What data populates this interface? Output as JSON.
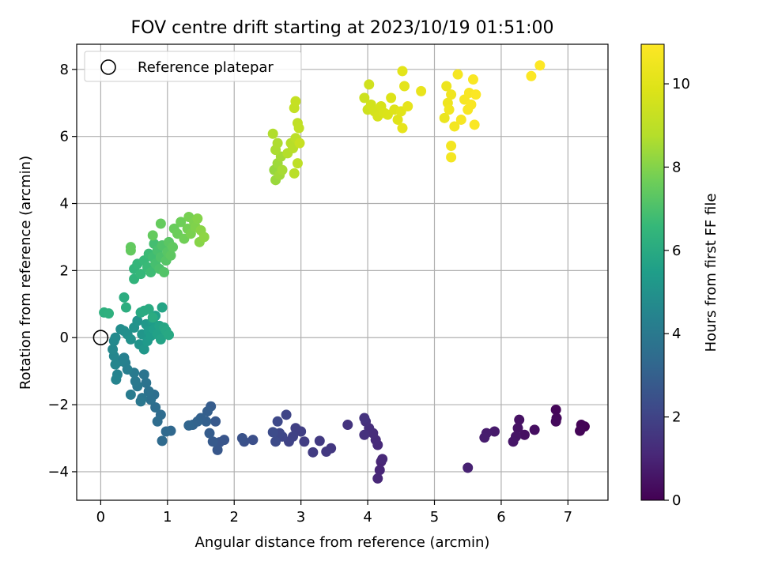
{
  "chart_data": {
    "type": "scatter",
    "title": "FOV centre drift starting at 2023/10/19 01:51:00",
    "xlabel": "Angular distance from reference (arcmin)",
    "ylabel": "Rotation from reference (arcmin)",
    "xlim": [
      -0.36,
      7.6
    ],
    "ylim": [
      -4.85,
      8.75
    ],
    "xticks": [
      0,
      1,
      2,
      3,
      4,
      5,
      6,
      7
    ],
    "yticks": [
      -4,
      -2,
      0,
      2,
      4,
      6,
      8
    ],
    "grid": true,
    "legend": {
      "position": "top-left",
      "entries": [
        "Reference platepar"
      ]
    },
    "reference_point": {
      "x": 0,
      "y": 0
    },
    "colorbar": {
      "label": "Hours from first FF file",
      "min": 0,
      "max": 10.95,
      "ticks": [
        0,
        2,
        4,
        6,
        8,
        10
      ],
      "colormap": "viridis"
    },
    "points": [
      {
        "x": 7.25,
        "y": -2.65,
        "h": 0.0
      },
      {
        "x": 7.2,
        "y": -2.6,
        "h": 0.05
      },
      {
        "x": 7.18,
        "y": -2.78,
        "h": 0.1
      },
      {
        "x": 6.82,
        "y": -2.15,
        "h": 0.15
      },
      {
        "x": 6.83,
        "y": -2.4,
        "h": 0.2
      },
      {
        "x": 6.82,
        "y": -2.5,
        "h": 0.25
      },
      {
        "x": 6.5,
        "y": -2.75,
        "h": 0.35
      },
      {
        "x": 6.35,
        "y": -2.9,
        "h": 0.4
      },
      {
        "x": 6.27,
        "y": -2.45,
        "h": 0.45
      },
      {
        "x": 6.25,
        "y": -2.7,
        "h": 0.5
      },
      {
        "x": 6.22,
        "y": -2.95,
        "h": 0.55
      },
      {
        "x": 6.18,
        "y": -3.1,
        "h": 0.6
      },
      {
        "x": 5.9,
        "y": -2.8,
        "h": 0.7
      },
      {
        "x": 5.78,
        "y": -2.85,
        "h": 0.75
      },
      {
        "x": 5.75,
        "y": -2.98,
        "h": 0.8
      },
      {
        "x": 5.5,
        "y": -3.88,
        "h": 0.9
      },
      {
        "x": 4.2,
        "y": -3.7,
        "h": 1.0
      },
      {
        "x": 4.18,
        "y": -3.95,
        "h": 1.05
      },
      {
        "x": 4.15,
        "y": -4.2,
        "h": 1.1
      },
      {
        "x": 4.22,
        "y": -3.62,
        "h": 1.12
      },
      {
        "x": 4.15,
        "y": -3.2,
        "h": 1.15
      },
      {
        "x": 4.12,
        "y": -3.05,
        "h": 1.2
      },
      {
        "x": 4.08,
        "y": -2.85,
        "h": 1.25
      },
      {
        "x": 4.02,
        "y": -2.7,
        "h": 1.3
      },
      {
        "x": 3.97,
        "y": -2.5,
        "h": 1.35
      },
      {
        "x": 3.95,
        "y": -2.9,
        "h": 1.4
      },
      {
        "x": 3.95,
        "y": -2.4,
        "h": 1.45
      },
      {
        "x": 3.7,
        "y": -2.6,
        "h": 1.5
      },
      {
        "x": 3.45,
        "y": -3.3,
        "h": 1.6
      },
      {
        "x": 3.38,
        "y": -3.4,
        "h": 1.65
      },
      {
        "x": 3.28,
        "y": -3.08,
        "h": 1.7
      },
      {
        "x": 3.18,
        "y": -3.42,
        "h": 1.75
      },
      {
        "x": 3.05,
        "y": -3.1,
        "h": 1.8
      },
      {
        "x": 3.0,
        "y": -2.8,
        "h": 1.85
      },
      {
        "x": 2.92,
        "y": -2.7,
        "h": 1.9
      },
      {
        "x": 2.88,
        "y": -2.95,
        "h": 1.95
      },
      {
        "x": 2.82,
        "y": -3.1,
        "h": 2.0
      },
      {
        "x": 2.78,
        "y": -2.3,
        "h": 2.05
      },
      {
        "x": 2.72,
        "y": -2.95,
        "h": 2.1
      },
      {
        "x": 2.68,
        "y": -2.85,
        "h": 2.15
      },
      {
        "x": 2.65,
        "y": -2.5,
        "h": 2.2
      },
      {
        "x": 2.62,
        "y": -3.1,
        "h": 2.25
      },
      {
        "x": 2.58,
        "y": -2.82,
        "h": 2.3
      },
      {
        "x": 2.28,
        "y": -3.05,
        "h": 2.4
      },
      {
        "x": 2.15,
        "y": -3.1,
        "h": 2.45
      },
      {
        "x": 2.12,
        "y": -3.0,
        "h": 2.5
      },
      {
        "x": 1.85,
        "y": -3.05,
        "h": 2.6
      },
      {
        "x": 1.78,
        "y": -3.12,
        "h": 2.65
      },
      {
        "x": 1.75,
        "y": -3.35,
        "h": 2.7
      },
      {
        "x": 1.72,
        "y": -2.5,
        "h": 2.75
      },
      {
        "x": 1.68,
        "y": -3.1,
        "h": 2.8
      },
      {
        "x": 1.65,
        "y": -2.05,
        "h": 2.85
      },
      {
        "x": 1.63,
        "y": -2.85,
        "h": 2.9
      },
      {
        "x": 1.6,
        "y": -2.2,
        "h": 2.95
      },
      {
        "x": 1.58,
        "y": -2.5,
        "h": 3.0
      },
      {
        "x": 1.5,
        "y": -2.4,
        "h": 3.05
      },
      {
        "x": 1.45,
        "y": -2.5,
        "h": 3.1
      },
      {
        "x": 1.38,
        "y": -2.6,
        "h": 3.15
      },
      {
        "x": 1.32,
        "y": -2.62,
        "h": 3.2
      },
      {
        "x": 1.05,
        "y": -2.78,
        "h": 3.3
      },
      {
        "x": 0.98,
        "y": -2.8,
        "h": 3.35
      },
      {
        "x": 0.92,
        "y": -3.08,
        "h": 3.4
      },
      {
        "x": 0.9,
        "y": -2.3,
        "h": 3.45
      },
      {
        "x": 0.85,
        "y": -2.5,
        "h": 3.5
      },
      {
        "x": 0.82,
        "y": -2.08,
        "h": 3.55
      },
      {
        "x": 0.8,
        "y": -1.7,
        "h": 3.6
      },
      {
        "x": 0.75,
        "y": -1.85,
        "h": 3.65
      },
      {
        "x": 0.72,
        "y": -1.6,
        "h": 3.7
      },
      {
        "x": 0.68,
        "y": -1.35,
        "h": 3.75
      },
      {
        "x": 0.65,
        "y": -1.1,
        "h": 3.8
      },
      {
        "x": 0.62,
        "y": -1.8,
        "h": 3.85
      },
      {
        "x": 0.6,
        "y": -1.9,
        "h": 3.9
      },
      {
        "x": 0.55,
        "y": -1.45,
        "h": 3.95
      },
      {
        "x": 0.52,
        "y": -1.3,
        "h": 4.0
      },
      {
        "x": 0.5,
        "y": -1.05,
        "h": 4.05
      },
      {
        "x": 0.45,
        "y": -1.7,
        "h": 4.1
      },
      {
        "x": 0.4,
        "y": -0.95,
        "h": 4.2
      },
      {
        "x": 0.37,
        "y": -0.75,
        "h": 4.25
      },
      {
        "x": 0.35,
        "y": -0.6,
        "h": 4.3
      },
      {
        "x": 0.3,
        "y": -0.7,
        "h": 4.35
      },
      {
        "x": 0.25,
        "y": -1.1,
        "h": 4.4
      },
      {
        "x": 0.23,
        "y": -1.25,
        "h": 4.45
      },
      {
        "x": 0.22,
        "y": -0.8,
        "h": 4.5
      },
      {
        "x": 0.2,
        "y": -0.55,
        "h": 4.55
      },
      {
        "x": 0.18,
        "y": -0.35,
        "h": 4.6
      },
      {
        "x": 0.2,
        "y": -0.1,
        "h": 4.65
      },
      {
        "x": 0.22,
        "y": 0.0,
        "h": 4.7
      },
      {
        "x": 0.3,
        "y": 0.25,
        "h": 4.8
      },
      {
        "x": 0.35,
        "y": 0.2,
        "h": 4.85
      },
      {
        "x": 0.4,
        "y": 0.1,
        "h": 4.9
      },
      {
        "x": 0.45,
        "y": -0.05,
        "h": 4.95
      },
      {
        "x": 0.5,
        "y": 0.3,
        "h": 5.0
      },
      {
        "x": 0.55,
        "y": 0.5,
        "h": 5.05
      },
      {
        "x": 0.58,
        "y": -0.2,
        "h": 5.1
      },
      {
        "x": 0.62,
        "y": 0.1,
        "h": 5.15
      },
      {
        "x": 0.65,
        "y": -0.35,
        "h": 5.2
      },
      {
        "x": 0.68,
        "y": 0.4,
        "h": 5.25
      },
      {
        "x": 0.7,
        "y": -0.1,
        "h": 5.3
      },
      {
        "x": 0.72,
        "y": 0.2,
        "h": 5.35
      },
      {
        "x": 0.75,
        "y": 0.05,
        "h": 5.4
      },
      {
        "x": 0.78,
        "y": 0.5,
        "h": 5.45
      },
      {
        "x": 0.8,
        "y": 0.25,
        "h": 5.5
      },
      {
        "x": 0.82,
        "y": 0.65,
        "h": 5.55
      },
      {
        "x": 0.85,
        "y": 0.1,
        "h": 5.6
      },
      {
        "x": 0.88,
        "y": 0.35,
        "h": 5.65
      },
      {
        "x": 0.9,
        "y": -0.05,
        "h": 5.7
      },
      {
        "x": 0.92,
        "y": 0.9,
        "h": 5.75
      },
      {
        "x": 0.95,
        "y": 0.3,
        "h": 5.8
      },
      {
        "x": 0.98,
        "y": 0.2,
        "h": 5.85
      },
      {
        "x": 1.02,
        "y": 0.08,
        "h": 5.9
      },
      {
        "x": 0.6,
        "y": 0.75,
        "h": 5.95
      },
      {
        "x": 0.65,
        "y": 0.8,
        "h": 6.0
      },
      {
        "x": 0.72,
        "y": 0.85,
        "h": 6.02
      },
      {
        "x": 0.78,
        "y": 0.6,
        "h": 6.05
      },
      {
        "x": 0.35,
        "y": 1.2,
        "h": 6.1
      },
      {
        "x": 0.38,
        "y": 0.9,
        "h": 6.15
      },
      {
        "x": 0.05,
        "y": 0.75,
        "h": 6.2
      },
      {
        "x": 0.12,
        "y": 0.72,
        "h": 6.25
      },
      {
        "x": 0.5,
        "y": 1.75,
        "h": 6.4
      },
      {
        "x": 0.5,
        "y": 2.05,
        "h": 6.45
      },
      {
        "x": 0.55,
        "y": 2.2,
        "h": 6.5
      },
      {
        "x": 0.6,
        "y": 1.9,
        "h": 6.55
      },
      {
        "x": 0.65,
        "y": 2.3,
        "h": 6.6
      },
      {
        "x": 0.7,
        "y": 2.1,
        "h": 6.65
      },
      {
        "x": 0.72,
        "y": 2.5,
        "h": 6.7
      },
      {
        "x": 0.75,
        "y": 1.95,
        "h": 6.75
      },
      {
        "x": 0.78,
        "y": 2.4,
        "h": 6.8
      },
      {
        "x": 0.8,
        "y": 2.8,
        "h": 6.85
      },
      {
        "x": 0.82,
        "y": 2.2,
        "h": 6.9
      },
      {
        "x": 0.85,
        "y": 2.6,
        "h": 6.95
      },
      {
        "x": 0.88,
        "y": 2.05,
        "h": 7.0
      },
      {
        "x": 0.9,
        "y": 2.4,
        "h": 7.05
      },
      {
        "x": 0.92,
        "y": 2.75,
        "h": 7.1
      },
      {
        "x": 0.95,
        "y": 1.95,
        "h": 7.15
      },
      {
        "x": 0.98,
        "y": 2.3,
        "h": 7.2
      },
      {
        "x": 1.0,
        "y": 2.55,
        "h": 7.25
      },
      {
        "x": 1.02,
        "y": 2.85,
        "h": 7.3
      },
      {
        "x": 1.05,
        "y": 2.45,
        "h": 7.35
      },
      {
        "x": 1.08,
        "y": 2.7,
        "h": 7.4
      },
      {
        "x": 0.45,
        "y": 2.7,
        "h": 7.42
      },
      {
        "x": 0.45,
        "y": 2.6,
        "h": 7.45
      },
      {
        "x": 0.78,
        "y": 3.05,
        "h": 7.48
      },
      {
        "x": 0.9,
        "y": 3.4,
        "h": 7.5
      },
      {
        "x": 1.1,
        "y": 3.25,
        "h": 7.55
      },
      {
        "x": 1.15,
        "y": 3.1,
        "h": 7.6
      },
      {
        "x": 1.2,
        "y": 3.45,
        "h": 7.65
      },
      {
        "x": 1.25,
        "y": 2.95,
        "h": 7.7
      },
      {
        "x": 1.3,
        "y": 3.25,
        "h": 7.75
      },
      {
        "x": 1.32,
        "y": 3.6,
        "h": 7.8
      },
      {
        "x": 1.35,
        "y": 3.1,
        "h": 7.85
      },
      {
        "x": 1.4,
        "y": 3.45,
        "h": 7.9
      },
      {
        "x": 1.42,
        "y": 3.3,
        "h": 7.95
      },
      {
        "x": 1.45,
        "y": 3.55,
        "h": 8.0
      },
      {
        "x": 1.48,
        "y": 2.85,
        "h": 8.05
      },
      {
        "x": 1.5,
        "y": 3.2,
        "h": 8.1
      },
      {
        "x": 1.55,
        "y": 3.0,
        "h": 8.15
      },
      {
        "x": 2.6,
        "y": 5.0,
        "h": 8.3
      },
      {
        "x": 2.62,
        "y": 4.7,
        "h": 8.35
      },
      {
        "x": 2.65,
        "y": 5.2,
        "h": 8.4
      },
      {
        "x": 2.68,
        "y": 4.85,
        "h": 8.45
      },
      {
        "x": 2.7,
        "y": 5.4,
        "h": 8.5
      },
      {
        "x": 2.72,
        "y": 5.0,
        "h": 8.55
      },
      {
        "x": 2.62,
        "y": 5.6,
        "h": 8.6
      },
      {
        "x": 2.65,
        "y": 5.8,
        "h": 8.65
      },
      {
        "x": 2.58,
        "y": 6.08,
        "h": 8.7
      },
      {
        "x": 2.8,
        "y": 5.5,
        "h": 8.75
      },
      {
        "x": 2.85,
        "y": 5.8,
        "h": 8.8
      },
      {
        "x": 2.88,
        "y": 5.65,
        "h": 8.85
      },
      {
        "x": 2.9,
        "y": 4.9,
        "h": 8.9
      },
      {
        "x": 2.92,
        "y": 5.95,
        "h": 8.95
      },
      {
        "x": 2.95,
        "y": 5.2,
        "h": 9.0
      },
      {
        "x": 2.95,
        "y": 6.4,
        "h": 9.05
      },
      {
        "x": 2.97,
        "y": 6.25,
        "h": 9.1
      },
      {
        "x": 2.9,
        "y": 6.85,
        "h": 9.15
      },
      {
        "x": 2.92,
        "y": 7.05,
        "h": 9.2
      },
      {
        "x": 2.98,
        "y": 5.8,
        "h": 9.25
      },
      {
        "x": 3.95,
        "y": 7.15,
        "h": 9.4
      },
      {
        "x": 4.0,
        "y": 6.8,
        "h": 9.45
      },
      {
        "x": 4.02,
        "y": 7.55,
        "h": 9.5
      },
      {
        "x": 4.05,
        "y": 6.95,
        "h": 9.55
      },
      {
        "x": 4.1,
        "y": 6.75,
        "h": 9.6
      },
      {
        "x": 4.15,
        "y": 6.6,
        "h": 9.65
      },
      {
        "x": 4.2,
        "y": 6.9,
        "h": 9.7
      },
      {
        "x": 4.25,
        "y": 6.7,
        "h": 9.75
      },
      {
        "x": 4.3,
        "y": 6.65,
        "h": 9.8
      },
      {
        "x": 4.35,
        "y": 7.15,
        "h": 9.85
      },
      {
        "x": 4.4,
        "y": 6.8,
        "h": 9.9
      },
      {
        "x": 4.45,
        "y": 6.5,
        "h": 9.95
      },
      {
        "x": 4.5,
        "y": 6.75,
        "h": 10.0
      },
      {
        "x": 4.52,
        "y": 7.95,
        "h": 10.05
      },
      {
        "x": 4.55,
        "y": 7.5,
        "h": 10.1
      },
      {
        "x": 4.6,
        "y": 6.9,
        "h": 10.15
      },
      {
        "x": 4.52,
        "y": 6.25,
        "h": 10.2
      },
      {
        "x": 4.8,
        "y": 7.35,
        "h": 10.25
      },
      {
        "x": 5.15,
        "y": 6.55,
        "h": 10.35
      },
      {
        "x": 5.18,
        "y": 7.5,
        "h": 10.4
      },
      {
        "x": 5.2,
        "y": 7.0,
        "h": 10.45
      },
      {
        "x": 5.25,
        "y": 7.25,
        "h": 10.5
      },
      {
        "x": 5.22,
        "y": 6.8,
        "h": 10.55
      },
      {
        "x": 5.3,
        "y": 6.3,
        "h": 10.6
      },
      {
        "x": 5.25,
        "y": 5.72,
        "h": 10.62
      },
      {
        "x": 5.25,
        "y": 5.38,
        "h": 10.65
      },
      {
        "x": 5.35,
        "y": 7.85,
        "h": 10.68
      },
      {
        "x": 5.4,
        "y": 6.5,
        "h": 10.7
      },
      {
        "x": 5.45,
        "y": 7.1,
        "h": 10.72
      },
      {
        "x": 5.5,
        "y": 6.8,
        "h": 10.75
      },
      {
        "x": 5.52,
        "y": 7.3,
        "h": 10.78
      },
      {
        "x": 5.55,
        "y": 6.95,
        "h": 10.8
      },
      {
        "x": 5.58,
        "y": 7.7,
        "h": 10.82
      },
      {
        "x": 5.6,
        "y": 6.35,
        "h": 10.85
      },
      {
        "x": 5.62,
        "y": 7.25,
        "h": 10.87
      },
      {
        "x": 6.45,
        "y": 7.8,
        "h": 10.9
      },
      {
        "x": 6.58,
        "y": 8.12,
        "h": 10.95
      }
    ]
  }
}
